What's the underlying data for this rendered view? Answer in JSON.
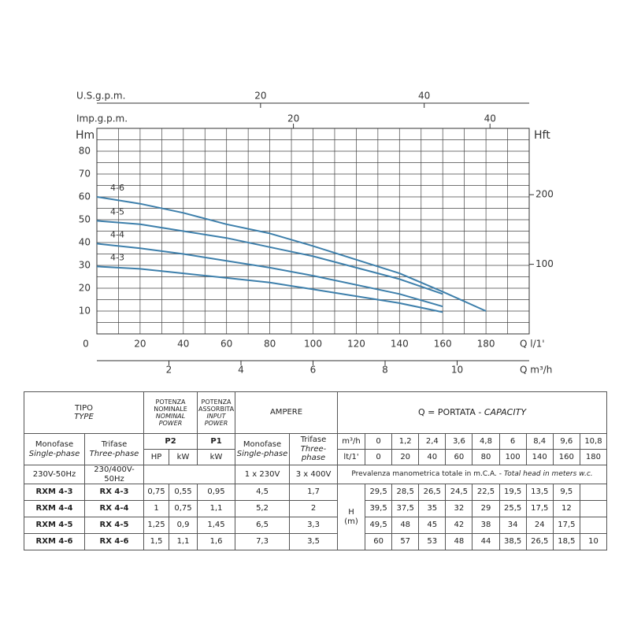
{
  "chart_data": {
    "type": "line",
    "x": [
      0,
      20,
      40,
      60,
      80,
      100,
      140,
      160,
      180
    ],
    "xlim": [
      0,
      200
    ],
    "xticks": [
      0,
      20,
      40,
      60,
      80,
      100,
      120,
      140,
      160,
      180
    ],
    "x_label": "Q l/1'",
    "ylim": [
      0,
      90
    ],
    "yticks": [
      10,
      20,
      30,
      40,
      50,
      60,
      70,
      80
    ],
    "y_label": "Hm",
    "y2lim": [
      0,
      295.3
    ],
    "y2ticks": [
      100,
      200
    ],
    "y2_label": "Hft",
    "top_axes": [
      {
        "label": "U.S.g.p.m.",
        "xlim": [
          0,
          52.83
        ],
        "xticks": [
          20,
          40
        ]
      },
      {
        "label": "Imp.g.p.m.",
        "xlim": [
          0,
          43.99
        ],
        "xticks": [
          20,
          40
        ]
      }
    ],
    "bottom_axis": {
      "label": "Q m³/h",
      "xlim": [
        0,
        12
      ],
      "xticks": [
        2,
        4,
        6,
        8,
        10
      ]
    },
    "grid": true,
    "series": [
      {
        "name": "4-3",
        "color": "#3d7fab",
        "values": [
          29.5,
          28.5,
          26.5,
          24.5,
          22.5,
          19.5,
          13.5,
          9.5,
          null
        ]
      },
      {
        "name": "4-4",
        "color": "#3d7fab",
        "values": [
          39.5,
          37.5,
          35,
          32,
          29,
          25.5,
          17.5,
          12,
          null
        ]
      },
      {
        "name": "4-5",
        "color": "#3d7fab",
        "values": [
          49.5,
          48,
          45,
          42,
          38,
          34,
          24,
          17.5,
          null
        ]
      },
      {
        "name": "4-6",
        "color": "#3d7fab",
        "values": [
          60,
          57,
          53,
          48,
          44,
          38.5,
          26.5,
          18.5,
          10
        ]
      }
    ]
  },
  "table": {
    "header": {
      "tipo": "TIPO",
      "type": "TYPE",
      "potenza_nominale": "POTENZA NOMINALE",
      "nominal_power": "NOMINAL POWER",
      "potenza_assorbita": "POTENZA ASSORBITA",
      "input_power": "INPUT POWER",
      "ampere": "AMPERE",
      "portata": "Q = PORTATA - ",
      "capacity": "CAPACITY",
      "monofase": "Monofase",
      "single_phase": "Single-phase",
      "trifase": "Trifase",
      "three_phase": "Three-phase",
      "p2": "P2",
      "p1": "P1",
      "hp": "HP",
      "kw_p2": "kW",
      "kw_p1": "kW",
      "amp_monofase": "Monofase",
      "amp_single_phase": "Single-phase",
      "amp_trifase": "Trifase",
      "amp_three_phase": "Three-phase",
      "unit_m3h": "m³/h",
      "unit_l": "lt/1'",
      "q_m3h": [
        "0",
        "1,2",
        "2,4",
        "3,6",
        "4,8",
        "6",
        "8,4",
        "9,6",
        "10,8"
      ],
      "q_l": [
        "0",
        "20",
        "40",
        "60",
        "80",
        "100",
        "140",
        "160",
        "180"
      ],
      "volt_mono": "230V-50Hz",
      "volt_tri": "230/400V-50Hz",
      "amp_mono_v": "1 x 230V",
      "amp_tri_v": "3 x 400V",
      "head_note": "Prevalenza manometrica totale in m.C.A. - ",
      "head_note_en": "Total head in meters w.c.",
      "h": "H",
      "h_unit": "(m)"
    },
    "rows": [
      [
        "RXM 4-3",
        "RX 4-3",
        "0,75",
        "0,55",
        "0,95",
        "4,5",
        "1,7",
        "29,5",
        "28,5",
        "26,5",
        "24,5",
        "22,5",
        "19,5",
        "13,5",
        "9,5"
      ],
      [
        "RXM 4-4",
        "RX 4-4",
        "1",
        "0,75",
        "1,1",
        "5,2",
        "2",
        "39,5",
        "37,5",
        "35",
        "32",
        "29",
        "25,5",
        "17,5",
        "12"
      ],
      [
        "RXM 4-5",
        "RX 4-5",
        "1,25",
        "0,9",
        "1,45",
        "6,5",
        "3,3",
        "49,5",
        "48",
        "45",
        "42",
        "38",
        "34",
        "24",
        "17,5"
      ],
      [
        "RXM 4-6",
        "RX 4-6",
        "1,5",
        "1,1",
        "1,6",
        "7,3",
        "3,5",
        "60",
        "57",
        "53",
        "48",
        "44",
        "38,5",
        "26,5",
        "18,5",
        "10"
      ]
    ]
  }
}
